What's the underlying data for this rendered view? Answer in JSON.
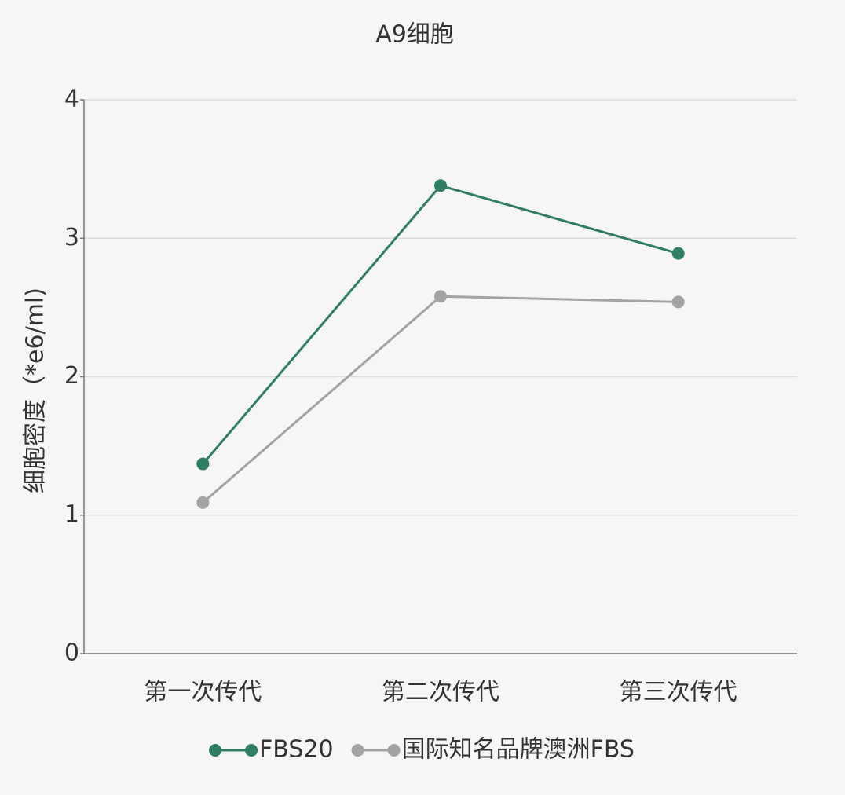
{
  "chart_data": {
    "type": "line",
    "title": "A9细胞",
    "y_label": "细胞密度（*e6/ml)",
    "categories": [
      "第一次传代",
      "第二次传代",
      "第三次传代"
    ],
    "series": [
      {
        "name": "FBS20",
        "color": "#2e7d64",
        "values": [
          1.37,
          3.38,
          2.89
        ]
      },
      {
        "name": "国际知名品牌澳洲FBS",
        "color": "#a3a3a3",
        "values": [
          1.09,
          2.58,
          2.54
        ]
      }
    ],
    "ylim": [
      0,
      4
    ],
    "yticks": [
      0,
      1,
      2,
      3,
      4
    ],
    "grid": true,
    "legend": "bottom"
  }
}
